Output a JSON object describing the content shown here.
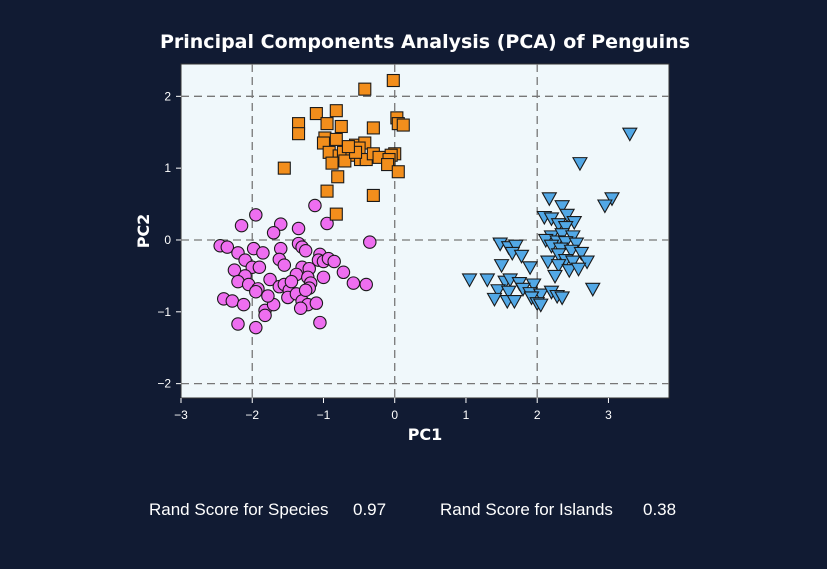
{
  "chart_data": {
    "type": "scatter",
    "title": "Principal Components Analysis (PCA) of Penguins",
    "xlabel": "PC1",
    "ylabel": "PC2",
    "xlim": [
      -3.0,
      3.85
    ],
    "ylim": [
      -2.2,
      2.45
    ],
    "xticks": [
      -3,
      -2,
      -1,
      0,
      1,
      2,
      3
    ],
    "yticks": [
      -2,
      -1,
      0,
      1,
      2
    ],
    "xtick_labels": [
      "−3",
      "−2",
      "−1",
      "0",
      "1",
      "2",
      "3"
    ],
    "ytick_labels": [
      "−2",
      "−1",
      "0",
      "1",
      "2"
    ],
    "reference_lines": {
      "x": [
        -2,
        0,
        2
      ],
      "y": [
        -2,
        0,
        2
      ]
    },
    "grid": false,
    "plot_background": "#f0f8fb",
    "series": [
      {
        "marker": "circle",
        "color": "#ee6ef0",
        "points": [
          [
            -1.95,
            0.35
          ],
          [
            -2.15,
            0.2
          ],
          [
            -1.6,
            0.22
          ],
          [
            -1.7,
            0.1
          ],
          [
            -1.35,
            0.16
          ],
          [
            -1.12,
            0.48
          ],
          [
            -0.95,
            0.23
          ],
          [
            -2.45,
            -0.08
          ],
          [
            -2.35,
            -0.1
          ],
          [
            -2.2,
            -0.18
          ],
          [
            -1.98,
            -0.12
          ],
          [
            -1.85,
            -0.18
          ],
          [
            -1.6,
            -0.12
          ],
          [
            -1.35,
            -0.05
          ],
          [
            -1.3,
            -0.1
          ],
          [
            -1.25,
            -0.15
          ],
          [
            -1.05,
            -0.2
          ],
          [
            -0.35,
            -0.03
          ],
          [
            -2.1,
            -0.28
          ],
          [
            -2.25,
            -0.42
          ],
          [
            -2.0,
            -0.38
          ],
          [
            -1.9,
            -0.38
          ],
          [
            -1.62,
            -0.27
          ],
          [
            -1.55,
            -0.35
          ],
          [
            -1.3,
            -0.38
          ],
          [
            -1.2,
            -0.4
          ],
          [
            -1.07,
            -0.28
          ],
          [
            -1.0,
            -0.3
          ],
          [
            -0.93,
            -0.26
          ],
          [
            -0.85,
            -0.3
          ],
          [
            -2.1,
            -0.5
          ],
          [
            -2.2,
            -0.58
          ],
          [
            -2.05,
            -0.62
          ],
          [
            -1.92,
            -0.68
          ],
          [
            -1.75,
            -0.55
          ],
          [
            -1.62,
            -0.65
          ],
          [
            -1.55,
            -0.62
          ],
          [
            -1.48,
            -0.7
          ],
          [
            -1.38,
            -0.48
          ],
          [
            -1.22,
            -0.52
          ],
          [
            -1.18,
            -0.6
          ],
          [
            -1.0,
            -0.52
          ],
          [
            -0.72,
            -0.45
          ],
          [
            -0.58,
            -0.6
          ],
          [
            -0.4,
            -0.62
          ],
          [
            -2.4,
            -0.82
          ],
          [
            -2.28,
            -0.85
          ],
          [
            -2.12,
            -0.9
          ],
          [
            -1.95,
            -0.72
          ],
          [
            -1.82,
            -0.98
          ],
          [
            -1.7,
            -0.9
          ],
          [
            -1.5,
            -0.8
          ],
          [
            -1.38,
            -0.75
          ],
          [
            -1.3,
            -0.85
          ],
          [
            -1.22,
            -0.9
          ],
          [
            -1.32,
            -0.95
          ],
          [
            -1.1,
            -0.88
          ],
          [
            -1.2,
            -0.67
          ],
          [
            -2.2,
            -1.17
          ],
          [
            -1.95,
            -1.22
          ],
          [
            -1.82,
            -1.05
          ],
          [
            -1.05,
            -1.15
          ],
          [
            -1.25,
            -0.7
          ],
          [
            -1.78,
            -0.78
          ],
          [
            -1.45,
            -0.58
          ]
        ]
      },
      {
        "marker": "square",
        "color": "#f28e1c",
        "points": [
          [
            -0.02,
            2.22
          ],
          [
            -0.42,
            2.1
          ],
          [
            -0.82,
            1.8
          ],
          [
            -1.1,
            1.76
          ],
          [
            -1.35,
            1.62
          ],
          [
            -0.95,
            1.62
          ],
          [
            -0.75,
            1.58
          ],
          [
            -0.3,
            1.56
          ],
          [
            0.03,
            1.7
          ],
          [
            0.05,
            1.62
          ],
          [
            0.12,
            1.6
          ],
          [
            -1.35,
            1.48
          ],
          [
            -0.98,
            1.42
          ],
          [
            -0.82,
            1.4
          ],
          [
            -1.0,
            1.35
          ],
          [
            -0.55,
            1.32
          ],
          [
            -0.42,
            1.35
          ],
          [
            -0.5,
            1.28
          ],
          [
            -0.92,
            1.22
          ],
          [
            -0.78,
            1.17
          ],
          [
            -0.72,
            1.22
          ],
          [
            -0.6,
            1.18
          ],
          [
            -0.48,
            1.12
          ],
          [
            -0.4,
            1.12
          ],
          [
            -0.3,
            1.2
          ],
          [
            0.0,
            1.2
          ],
          [
            -0.05,
            1.18
          ],
          [
            -0.88,
            1.07
          ],
          [
            -0.7,
            1.1
          ],
          [
            -0.22,
            1.15
          ],
          [
            -0.08,
            1.12
          ],
          [
            -0.1,
            1.05
          ],
          [
            0.05,
            0.95
          ],
          [
            -0.8,
            0.88
          ],
          [
            -1.55,
            1.0
          ],
          [
            -0.95,
            0.68
          ],
          [
            -0.3,
            0.62
          ],
          [
            -0.82,
            0.36
          ],
          [
            -0.55,
            1.22
          ],
          [
            -0.65,
            1.3
          ]
        ]
      },
      {
        "marker": "triangle-down",
        "color": "#52a8e6",
        "points": [
          [
            3.3,
            1.48
          ],
          [
            2.6,
            1.07
          ],
          [
            3.05,
            0.58
          ],
          [
            2.95,
            0.48
          ],
          [
            2.17,
            0.58
          ],
          [
            2.35,
            0.47
          ],
          [
            2.1,
            0.32
          ],
          [
            2.2,
            0.3
          ],
          [
            2.42,
            0.35
          ],
          [
            2.52,
            0.25
          ],
          [
            2.3,
            0.22
          ],
          [
            2.4,
            0.18
          ],
          [
            2.2,
            0.05
          ],
          [
            2.35,
            0.08
          ],
          [
            2.5,
            0.05
          ],
          [
            2.12,
            0.0
          ],
          [
            2.28,
            -0.02
          ],
          [
            2.4,
            -0.03
          ],
          [
            2.55,
            -0.05
          ],
          [
            2.2,
            -0.08
          ],
          [
            2.33,
            -0.12
          ],
          [
            2.48,
            -0.15
          ],
          [
            2.3,
            -0.2
          ],
          [
            2.62,
            -0.18
          ],
          [
            1.48,
            -0.05
          ],
          [
            1.6,
            -0.1
          ],
          [
            1.7,
            -0.08
          ],
          [
            1.65,
            -0.18
          ],
          [
            1.78,
            -0.22
          ],
          [
            2.15,
            -0.3
          ],
          [
            2.4,
            -0.28
          ],
          [
            2.5,
            -0.3
          ],
          [
            2.3,
            -0.35
          ],
          [
            2.45,
            -0.42
          ],
          [
            2.7,
            -0.3
          ],
          [
            2.58,
            -0.4
          ],
          [
            1.5,
            -0.35
          ],
          [
            1.9,
            -0.38
          ],
          [
            1.05,
            -0.55
          ],
          [
            1.3,
            -0.55
          ],
          [
            1.55,
            -0.58
          ],
          [
            1.62,
            -0.55
          ],
          [
            1.75,
            -0.6
          ],
          [
            1.95,
            -0.62
          ],
          [
            2.25,
            -0.5
          ],
          [
            1.45,
            -0.7
          ],
          [
            1.6,
            -0.72
          ],
          [
            1.8,
            -0.68
          ],
          [
            1.9,
            -0.74
          ],
          [
            2.05,
            -0.76
          ],
          [
            2.2,
            -0.72
          ],
          [
            1.4,
            -0.82
          ],
          [
            1.58,
            -0.85
          ],
          [
            1.68,
            -0.85
          ],
          [
            1.92,
            -0.8
          ],
          [
            2.0,
            -0.88
          ],
          [
            2.28,
            -0.78
          ],
          [
            2.35,
            -0.8
          ],
          [
            2.78,
            -0.68
          ],
          [
            2.05,
            -0.9
          ]
        ]
      }
    ]
  },
  "stats": {
    "species_label": "Rand Score for Species",
    "species_value": "0.97",
    "islands_label": "Rand Score for Islands",
    "islands_value": "0.38"
  }
}
